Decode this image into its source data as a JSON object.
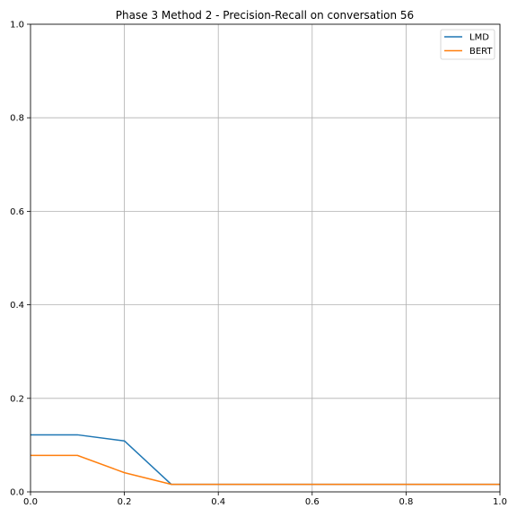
{
  "chart_data": {
    "type": "line",
    "title": "Phase 3 Method 2 - Precision-Recall on conversation 56",
    "xlabel": "",
    "ylabel": "",
    "xlim": [
      0,
      1
    ],
    "ylim": [
      0,
      1
    ],
    "xticks": [
      0.0,
      0.2,
      0.4,
      0.6,
      0.8,
      1.0
    ],
    "yticks": [
      0.0,
      0.2,
      0.4,
      0.6,
      0.8,
      1.0
    ],
    "xtick_labels": [
      "0.0",
      "0.2",
      "0.4",
      "0.6",
      "0.8",
      "1.0"
    ],
    "ytick_labels": [
      "0.0",
      "0.2",
      "0.4",
      "0.6",
      "0.8",
      "1.0"
    ],
    "grid": true,
    "legend_position": "top-right",
    "x": [
      0.0,
      0.1,
      0.2,
      0.3,
      0.4,
      0.5,
      0.6,
      0.7,
      0.8,
      0.9,
      1.0
    ],
    "series": [
      {
        "name": "LMD",
        "color": "#1f77b4",
        "values": [
          0.122,
          0.122,
          0.109,
          0.016,
          0.016,
          0.016,
          0.016,
          0.016,
          0.016,
          0.016,
          0.016
        ]
      },
      {
        "name": "BERT",
        "color": "#ff7f0e",
        "values": [
          0.078,
          0.078,
          0.041,
          0.016,
          0.016,
          0.016,
          0.016,
          0.016,
          0.016,
          0.016,
          0.016
        ]
      }
    ]
  }
}
